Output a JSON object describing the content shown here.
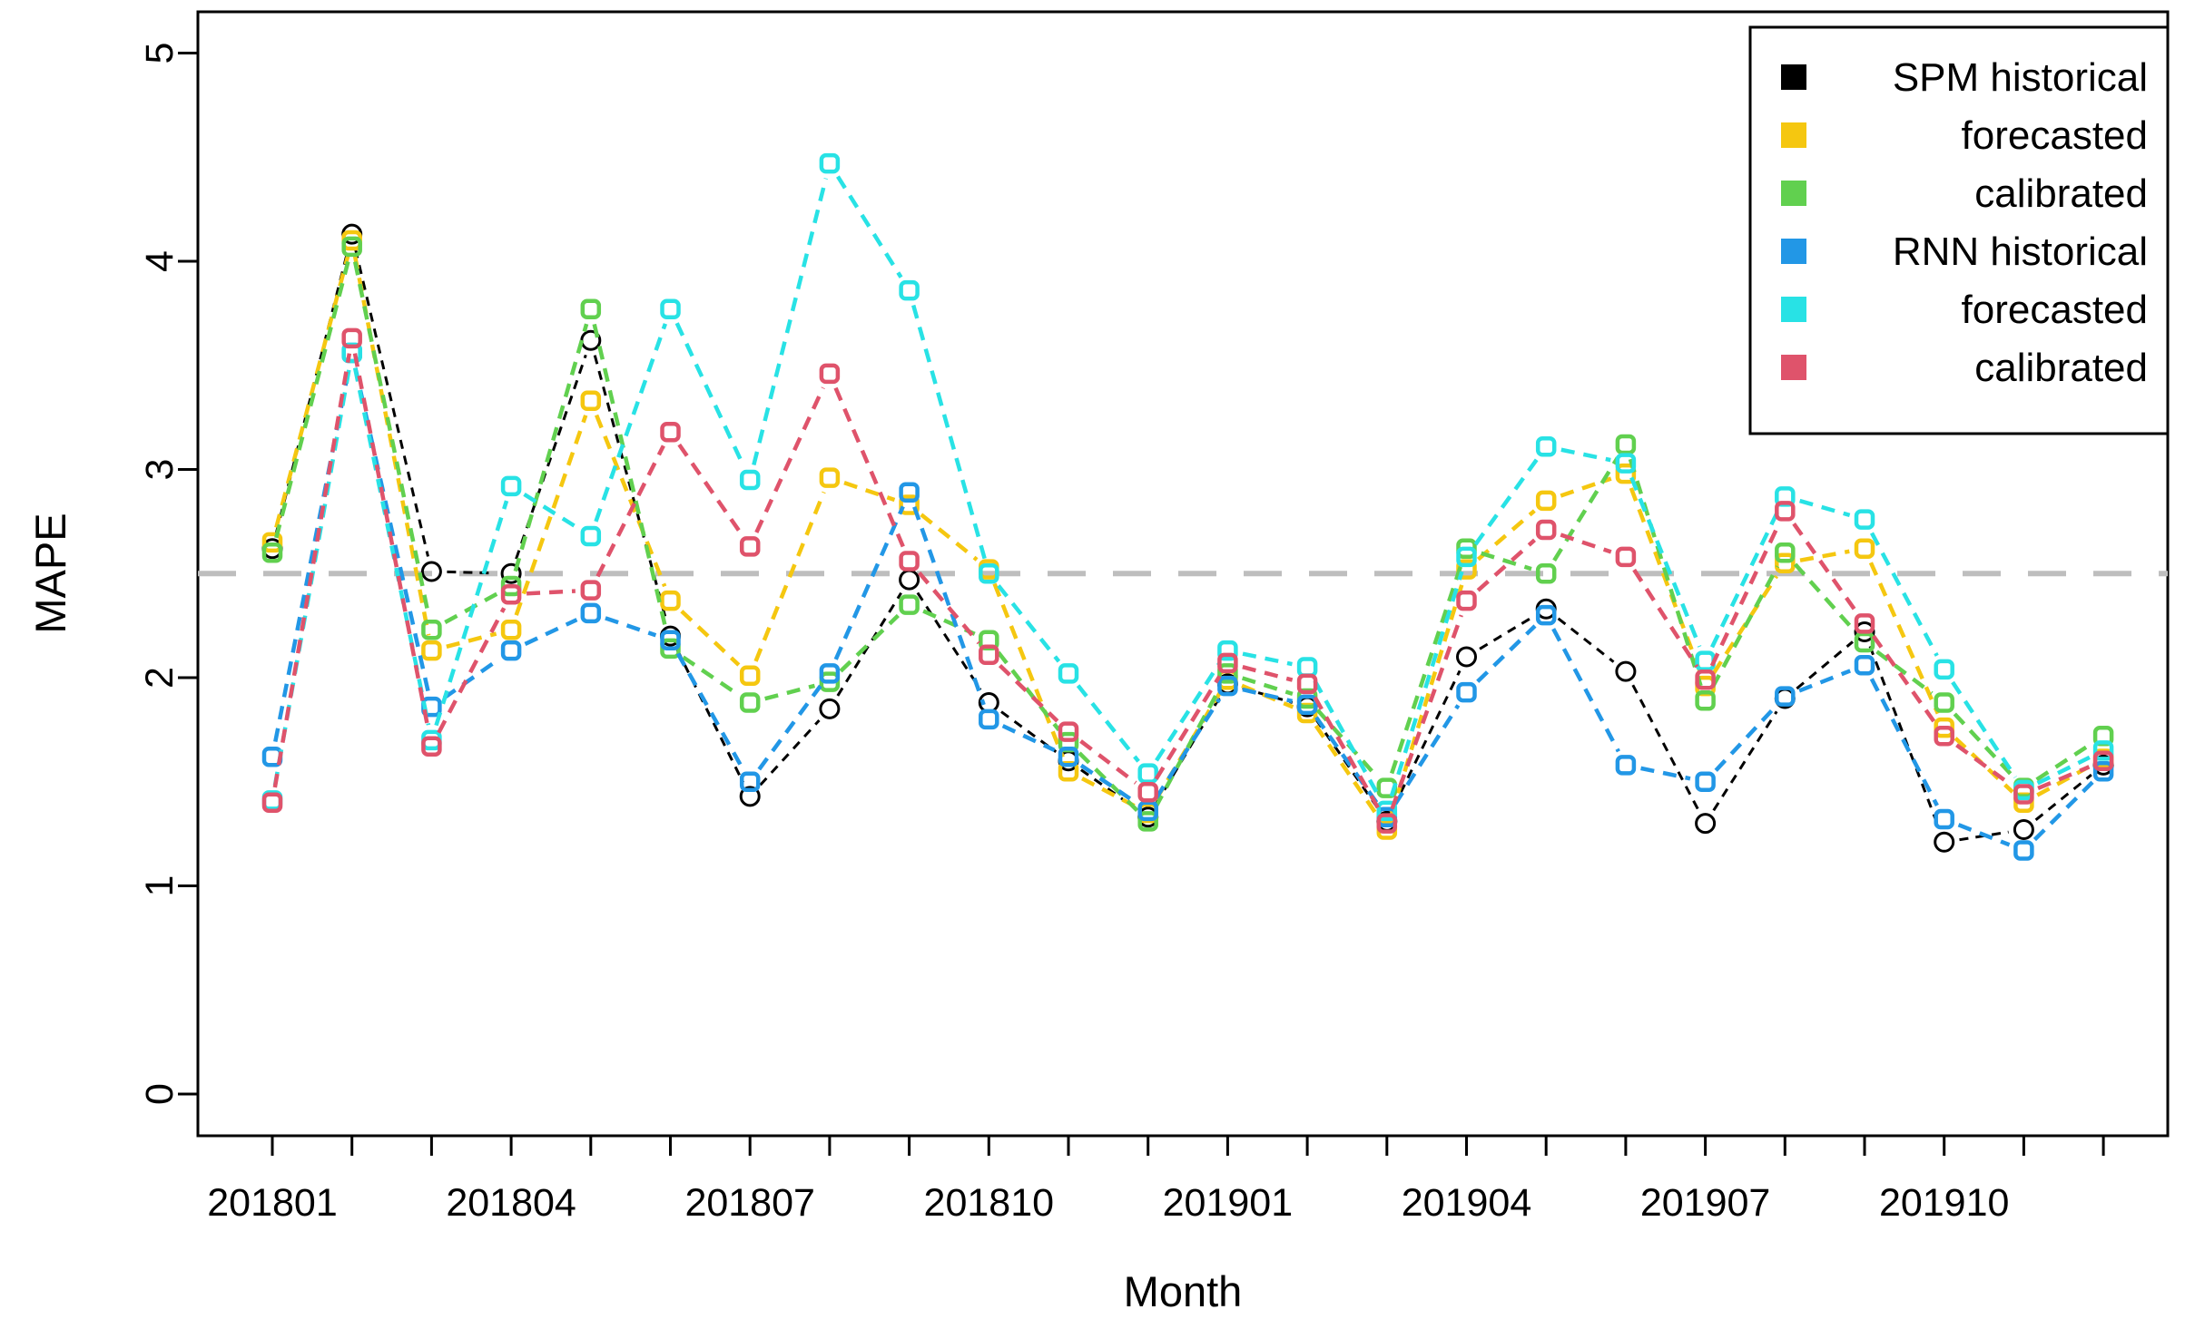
{
  "chart_data": {
    "type": "line",
    "title": "",
    "xlabel": "Month",
    "ylabel": "MAPE",
    "ylim": [
      0,
      5
    ],
    "yticks": [
      "0",
      "1",
      "2",
      "3",
      "4",
      "5"
    ],
    "x_labeled_ticks": [
      "201801",
      "201804",
      "201807",
      "201810",
      "201901",
      "201904",
      "201907",
      "201910"
    ],
    "x_labeled_positions": [
      0,
      3,
      6,
      9,
      12,
      15,
      18,
      21
    ],
    "grid": false,
    "reference_line": {
      "value": 2.5,
      "color": "#BEBEBE",
      "style": "dashed"
    },
    "categories": [
      "201801",
      "201802",
      "201803",
      "201804",
      "201805",
      "201806",
      "201807",
      "201808",
      "201809",
      "201810",
      "201811",
      "201812",
      "201901",
      "201902",
      "201903",
      "201904",
      "201905",
      "201906",
      "201907",
      "201908",
      "201909",
      "201910",
      "201911",
      "201912"
    ],
    "series": [
      {
        "name": "SPM historical",
        "color": "#000000",
        "marker": "circle",
        "values": [
          2.62,
          4.13,
          2.51,
          2.5,
          3.62,
          2.2,
          1.43,
          1.85,
          2.47,
          1.88,
          1.6,
          1.33,
          1.97,
          1.86,
          1.31,
          2.1,
          2.33,
          2.03,
          1.3,
          1.9,
          2.22,
          1.21,
          1.27,
          1.58
        ]
      },
      {
        "name": "SPM forecasted",
        "color": "#F5C710",
        "marker": "square",
        "values": [
          2.65,
          4.1,
          2.13,
          2.23,
          3.33,
          2.37,
          2.01,
          2.96,
          2.83,
          2.52,
          1.55,
          1.35,
          1.99,
          1.83,
          1.27,
          2.52,
          2.85,
          2.98,
          1.96,
          2.55,
          2.62,
          1.76,
          1.4,
          1.61
        ]
      },
      {
        "name": "SPM calibrated",
        "color": "#61D04F",
        "marker": "square",
        "values": [
          2.6,
          4.07,
          2.23,
          2.44,
          3.77,
          2.14,
          1.88,
          1.98,
          2.35,
          2.18,
          1.69,
          1.31,
          2.02,
          1.9,
          1.47,
          2.62,
          2.5,
          3.12,
          1.89,
          2.6,
          2.17,
          1.88,
          1.47,
          1.72
        ]
      },
      {
        "name": "RNN historical",
        "color": "#2297E6",
        "marker": "square",
        "values": [
          1.62,
          3.56,
          1.86,
          2.13,
          2.31,
          2.18,
          1.5,
          2.02,
          2.89,
          1.8,
          1.62,
          1.36,
          1.96,
          1.87,
          1.33,
          1.93,
          2.3,
          1.58,
          1.5,
          1.91,
          2.06,
          1.32,
          1.17,
          1.55
        ]
      },
      {
        "name": "RNN forecasted",
        "color": "#28E2E5",
        "marker": "square",
        "values": [
          1.41,
          3.56,
          1.7,
          2.92,
          2.68,
          3.77,
          2.95,
          4.47,
          3.86,
          2.5,
          2.02,
          1.54,
          2.13,
          2.05,
          1.36,
          2.58,
          3.11,
          3.03,
          2.08,
          2.87,
          2.76,
          2.04,
          1.46,
          1.65
        ]
      },
      {
        "name": "RNN calibrated",
        "color": "#DF536B",
        "marker": "square",
        "values": [
          1.4,
          3.63,
          1.67,
          2.4,
          2.42,
          3.18,
          2.63,
          3.46,
          2.56,
          2.11,
          1.74,
          1.45,
          2.07,
          1.97,
          1.3,
          2.37,
          2.71,
          2.58,
          1.99,
          2.8,
          2.26,
          1.72,
          1.44,
          1.6
        ]
      }
    ],
    "legend": {
      "position": "top-right",
      "entries": [
        {
          "label": "SPM historical",
          "color": "#000000"
        },
        {
          "label": "forecasted",
          "color": "#F5C710"
        },
        {
          "label": "calibrated",
          "color": "#61D04F"
        },
        {
          "label": "RNN historical",
          "color": "#2297E6"
        },
        {
          "label": "forecasted",
          "color": "#28E2E5"
        },
        {
          "label": "calibrated",
          "color": "#DF536B"
        }
      ]
    }
  }
}
